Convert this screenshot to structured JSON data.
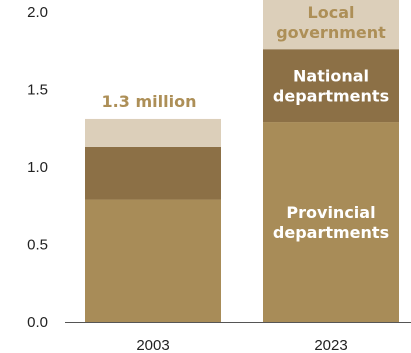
{
  "chart_data": {
    "type": "bar",
    "stacked": true,
    "categories": [
      "2003",
      "2023"
    ],
    "series": [
      {
        "name": "Provincial departments",
        "values": [
          0.79,
          1.29
        ]
      },
      {
        "name": "National departments",
        "values": [
          0.34,
          0.47
        ]
      },
      {
        "name": "Local government",
        "values": [
          0.18,
          0.35
        ]
      }
    ],
    "segment_labels": {
      "local": [
        "Local",
        "government"
      ],
      "national": [
        "National",
        "departments"
      ],
      "provincial": [
        "Provincial",
        "departments"
      ]
    },
    "total_annotation": {
      "category": "2003",
      "text": "1.3 million"
    },
    "ylim": [
      0,
      2.0
    ],
    "yticks": [
      "0.0",
      "0.5",
      "1.0",
      "1.5",
      "2.0"
    ],
    "grid": false,
    "colors": {
      "provincial": "#a88c58",
      "national": "#8c7046",
      "local": "#dccfba",
      "annotation": "#ad8f57",
      "axis": "#555555"
    }
  }
}
